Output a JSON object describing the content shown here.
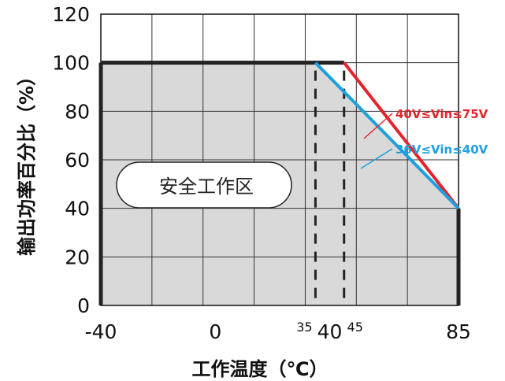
{
  "chart_data": {
    "type": "line",
    "xlabel": "工作温度（℃）",
    "ylabel": "输出功率百分比（%）",
    "xlim": [
      -40,
      85
    ],
    "ylim": [
      0,
      120
    ],
    "x_major_ticks": [
      -40,
      0,
      40,
      85
    ],
    "x_minor_ticks": [
      35,
      45
    ],
    "y_ticks": [
      0,
      20,
      40,
      60,
      80,
      100,
      120
    ],
    "grid": true,
    "safe_zone_label": "安全工作区",
    "safe_zone_boundary": [
      [
        -40,
        0
      ],
      [
        -40,
        100
      ],
      [
        35,
        100
      ],
      [
        85,
        40
      ],
      [
        85,
        0
      ]
    ],
    "dashed_markers": [
      35,
      45
    ],
    "series": [
      {
        "name": "40V≤Vin≤75V",
        "color": "#e4242c",
        "x": [
          45,
          85
        ],
        "y": [
          100,
          40
        ]
      },
      {
        "name": "36V≤Vin≤40V",
        "color": "#1e9fe0",
        "x": [
          35,
          85
        ],
        "y": [
          100,
          40
        ]
      }
    ]
  }
}
